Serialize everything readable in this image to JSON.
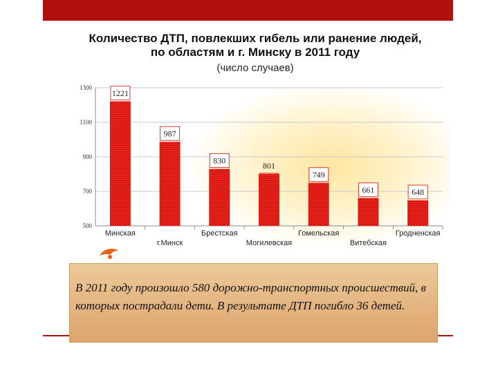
{
  "chart_data": {
    "type": "bar",
    "title_line1": "Количество ДТП, повлекших гибель или ранение людей,",
    "title_line2": "по областям и г. Минску в 2011 году",
    "subtitle": "(число случаев)",
    "categories": [
      "Минская",
      "г.Минск",
      "Брестская",
      "Могилевская",
      "Гомельская",
      "Витебская",
      "Гродненская"
    ],
    "values": [
      1221,
      987,
      830,
      801,
      749,
      661,
      648
    ],
    "value_labels": [
      "1221",
      "987",
      "830",
      "801",
      "749",
      "661",
      "648"
    ],
    "ylim": [
      500,
      1300
    ],
    "yticks": [
      "500",
      "700",
      "900",
      "1100",
      "1300"
    ],
    "xlabel": "",
    "ylabel": "",
    "grid": true,
    "bar_color": "#e8211b"
  },
  "caption": {
    "text": "В 2011 году произошло 580 дорожно-транспортных происшествий, в которых пострадали дети. В результате ДТП погибло 36 детей."
  },
  "colors": {
    "accent": "#b0110e",
    "caption_bg": "#e6b887"
  }
}
